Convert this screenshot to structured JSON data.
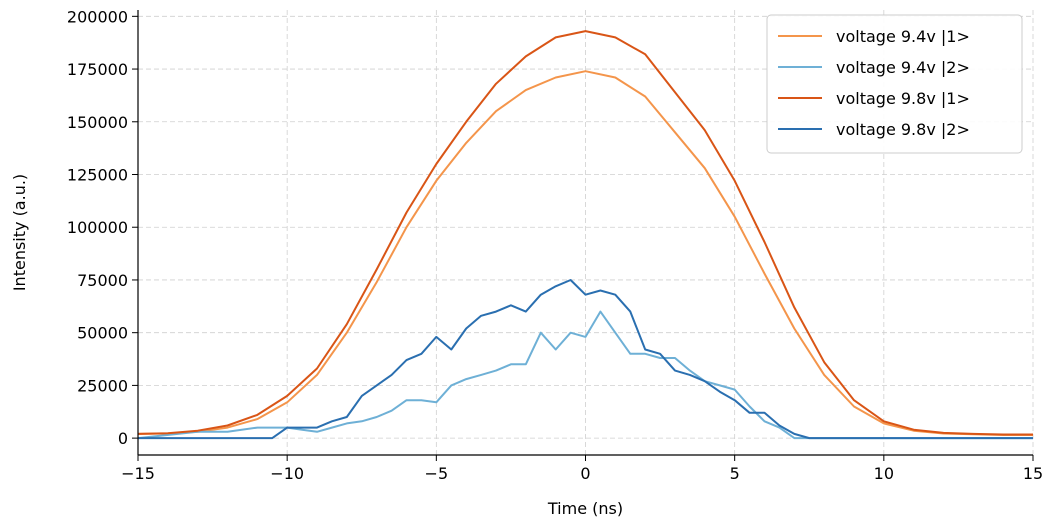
{
  "chart_data": {
    "type": "line",
    "title": "",
    "xlabel": "Time (ns)",
    "ylabel": "Intensity (a.u.)",
    "xlim": [
      -15,
      15
    ],
    "ylim": [
      -8000,
      203000
    ],
    "x_ticks": [
      -15,
      -10,
      -5,
      0,
      5,
      10,
      15
    ],
    "x_tick_labels": [
      "−15",
      "−10",
      "−5",
      "0",
      "5",
      "10",
      "15"
    ],
    "y_ticks": [
      0,
      25000,
      50000,
      75000,
      100000,
      125000,
      150000,
      175000,
      200000
    ],
    "y_tick_labels": [
      "0",
      "25000",
      "50000",
      "75000",
      "100000",
      "125000",
      "150000",
      "175000",
      "200000"
    ],
    "grid": true,
    "legend_position": "top-right",
    "series": [
      {
        "name": "voltage 9.4v |1>",
        "color": "#f4954b",
        "x": [
          -15,
          -14,
          -13,
          -12,
          -11,
          -10,
          -9,
          -8,
          -7,
          -6,
          -5,
          -4,
          -3,
          -2,
          -1,
          0,
          1,
          2,
          3,
          4,
          5,
          6,
          7,
          8,
          9,
          10,
          11,
          12,
          13,
          14,
          15
        ],
        "y": [
          2000,
          2200,
          3000,
          5000,
          9000,
          17000,
          30000,
          50000,
          74000,
          100000,
          122000,
          140000,
          155000,
          165000,
          171000,
          174000,
          171000,
          162000,
          145000,
          128000,
          105000,
          78000,
          52000,
          30000,
          15000,
          7000,
          3500,
          2200,
          1800,
          1500,
          1500
        ]
      },
      {
        "name": "voltage 9.4v |2>",
        "color": "#6eb0d6",
        "x": [
          -15,
          -13,
          -12,
          -11,
          -10.5,
          -10,
          -9.5,
          -9,
          -8.5,
          -8,
          -7.5,
          -7,
          -6.5,
          -6,
          -5.5,
          -5,
          -4.5,
          -4,
          -3.5,
          -3,
          -2.5,
          -2,
          -1.5,
          -1,
          -0.5,
          0,
          0.5,
          1,
          1.5,
          2,
          2.5,
          3,
          3.5,
          4,
          4.5,
          5,
          5.5,
          6,
          6.5,
          7,
          8,
          15
        ],
        "y": [
          0,
          3000,
          3000,
          5000,
          5000,
          5000,
          4000,
          3000,
          5000,
          7000,
          8000,
          10000,
          13000,
          18000,
          18000,
          17000,
          25000,
          28000,
          30000,
          32000,
          35000,
          35000,
          50000,
          42000,
          50000,
          48000,
          60000,
          50000,
          40000,
          40000,
          38000,
          38000,
          32000,
          27000,
          25000,
          23000,
          15000,
          8000,
          5000,
          0,
          0,
          0
        ]
      },
      {
        "name": "voltage 9.8v |1>",
        "color": "#d95516",
        "x": [
          -15,
          -14,
          -13,
          -12,
          -11,
          -10,
          -9,
          -8,
          -7,
          -6,
          -5,
          -4,
          -3,
          -2,
          -1,
          0,
          1,
          2,
          3,
          4,
          5,
          6,
          7,
          8,
          9,
          10,
          11,
          12,
          13,
          14,
          15
        ],
        "y": [
          2000,
          2300,
          3500,
          6000,
          11000,
          20000,
          33000,
          54000,
          80000,
          107000,
          130000,
          150000,
          168000,
          181000,
          190000,
          193000,
          190000,
          182000,
          164000,
          146000,
          122000,
          93000,
          62000,
          36000,
          18000,
          8000,
          4000,
          2500,
          2000,
          1700,
          1700
        ]
      },
      {
        "name": "voltage 9.8v |2>",
        "color": "#2a6fb0",
        "x": [
          -15,
          -11,
          -10.5,
          -10,
          -9.5,
          -9,
          -8.5,
          -8,
          -7.5,
          -7,
          -6.5,
          -6,
          -5.5,
          -5,
          -4.5,
          -4,
          -3.5,
          -3,
          -2.5,
          -2,
          -1.5,
          -1,
          -0.5,
          0,
          0.5,
          1,
          1.5,
          2,
          2.5,
          3,
          3.5,
          4,
          4.5,
          5,
          5.5,
          6,
          6.5,
          7,
          7.5,
          15
        ],
        "y": [
          0,
          0,
          0,
          5000,
          5000,
          5000,
          8000,
          10000,
          20000,
          25000,
          30000,
          37000,
          40000,
          48000,
          42000,
          52000,
          58000,
          60000,
          63000,
          60000,
          68000,
          72000,
          75000,
          68000,
          70000,
          68000,
          60000,
          42000,
          40000,
          32000,
          30000,
          27000,
          22000,
          18000,
          12000,
          12000,
          6000,
          2000,
          0,
          0
        ]
      }
    ]
  }
}
